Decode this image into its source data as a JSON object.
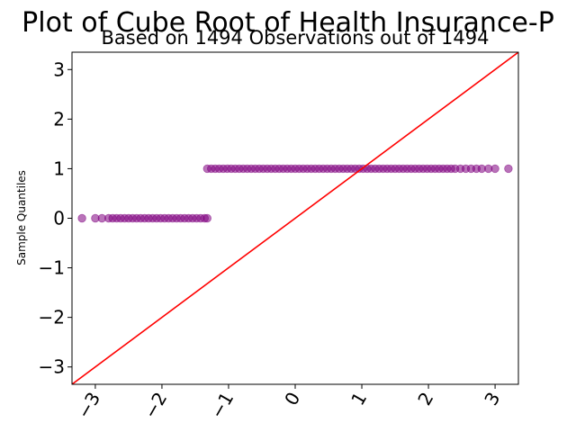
{
  "chart_data": {
    "type": "scatter",
    "title": "Plot of Cube Root of Health Insurance-P",
    "subtitle": "Based on 1494 Observations out of 1494",
    "xlabel": "",
    "ylabel": "Sample Quantiles",
    "xlim": [
      -3.35,
      3.35
    ],
    "ylim": [
      -3.35,
      3.35
    ],
    "x_ticks": [
      -3,
      -2,
      -1,
      0,
      1,
      2,
      3
    ],
    "y_ticks": [
      -3,
      -2,
      -1,
      0,
      1,
      2,
      3
    ],
    "x_tick_labels": [
      "−3",
      "−2",
      "−1",
      "0",
      "1",
      "2",
      "3"
    ],
    "y_tick_labels": [
      "−3",
      "−2",
      "−1",
      "0",
      "1",
      "2",
      "3"
    ],
    "point_color": "#800080",
    "line_color": "#ff0000",
    "reference_line": {
      "slope": 1,
      "intercept": 0
    },
    "series": [
      {
        "points": [
          [
            -3.2,
            0
          ],
          [
            -3.0,
            0
          ],
          [
            -2.9,
            0
          ],
          [
            -2.8,
            0
          ],
          [
            -2.74,
            0
          ],
          [
            -2.68,
            0
          ],
          [
            -2.62,
            0
          ],
          [
            -2.56,
            0
          ],
          [
            -2.5,
            0
          ],
          [
            -2.44,
            0
          ],
          [
            -2.38,
            0
          ],
          [
            -2.32,
            0
          ],
          [
            -2.26,
            0
          ],
          [
            -2.2,
            0
          ],
          [
            -2.14,
            0
          ],
          [
            -2.08,
            0
          ],
          [
            -2.02,
            0
          ],
          [
            -1.96,
            0
          ],
          [
            -1.9,
            0
          ],
          [
            -1.84,
            0
          ],
          [
            -1.78,
            0
          ],
          [
            -1.72,
            0
          ],
          [
            -1.66,
            0
          ],
          [
            -1.6,
            0
          ],
          [
            -1.54,
            0
          ],
          [
            -1.48,
            0
          ],
          [
            -1.42,
            0
          ],
          [
            -1.36,
            0
          ],
          [
            -1.32,
            0
          ],
          [
            -1.32,
            1
          ],
          [
            -1.26,
            1
          ],
          [
            -1.2,
            1
          ],
          [
            -1.14,
            1
          ],
          [
            -1.08,
            1
          ],
          [
            -1.02,
            1
          ],
          [
            -0.96,
            1
          ],
          [
            -0.9,
            1
          ],
          [
            -0.84,
            1
          ],
          [
            -0.78,
            1
          ],
          [
            -0.72,
            1
          ],
          [
            -0.66,
            1
          ],
          [
            -0.6,
            1
          ],
          [
            -0.54,
            1
          ],
          [
            -0.48,
            1
          ],
          [
            -0.42,
            1
          ],
          [
            -0.36,
            1
          ],
          [
            -0.3,
            1
          ],
          [
            -0.24,
            1
          ],
          [
            -0.18,
            1
          ],
          [
            -0.12,
            1
          ],
          [
            -0.06,
            1
          ],
          [
            0.0,
            1
          ],
          [
            0.06,
            1
          ],
          [
            0.12,
            1
          ],
          [
            0.18,
            1
          ],
          [
            0.24,
            1
          ],
          [
            0.3,
            1
          ],
          [
            0.36,
            1
          ],
          [
            0.42,
            1
          ],
          [
            0.48,
            1
          ],
          [
            0.54,
            1
          ],
          [
            0.6,
            1
          ],
          [
            0.66,
            1
          ],
          [
            0.72,
            1
          ],
          [
            0.78,
            1
          ],
          [
            0.84,
            1
          ],
          [
            0.9,
            1
          ],
          [
            0.96,
            1
          ],
          [
            1.02,
            1
          ],
          [
            1.08,
            1
          ],
          [
            1.14,
            1
          ],
          [
            1.2,
            1
          ],
          [
            1.26,
            1
          ],
          [
            1.32,
            1
          ],
          [
            1.38,
            1
          ],
          [
            1.44,
            1
          ],
          [
            1.5,
            1
          ],
          [
            1.56,
            1
          ],
          [
            1.62,
            1
          ],
          [
            1.68,
            1
          ],
          [
            1.74,
            1
          ],
          [
            1.8,
            1
          ],
          [
            1.86,
            1
          ],
          [
            1.92,
            1
          ],
          [
            1.98,
            1
          ],
          [
            2.04,
            1
          ],
          [
            2.1,
            1
          ],
          [
            2.16,
            1
          ],
          [
            2.22,
            1
          ],
          [
            2.28,
            1
          ],
          [
            2.34,
            1
          ],
          [
            2.4,
            1
          ],
          [
            2.48,
            1
          ],
          [
            2.56,
            1
          ],
          [
            2.64,
            1
          ],
          [
            2.72,
            1
          ],
          [
            2.8,
            1
          ],
          [
            2.9,
            1
          ],
          [
            3.0,
            1
          ],
          [
            3.2,
            1
          ]
        ]
      }
    ]
  }
}
